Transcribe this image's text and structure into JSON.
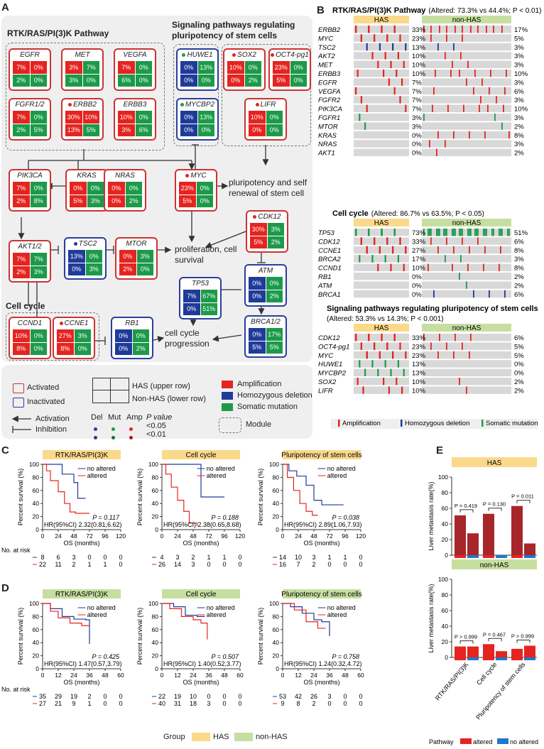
{
  "panel_labels": {
    "a": "A",
    "b": "B",
    "c": "C",
    "d": "D",
    "e": "E"
  },
  "a": {
    "rtk_title": "RTK/RAS/PI(3)K Pathway",
    "sp_title": "Signaling pathways regulating pluripotency of stem cells",
    "cc_title": "Cell cycle",
    "genes": [
      {
        "name": "EGFR",
        "v": [
          "7%",
          "0%",
          "2%",
          "0%"
        ]
      },
      {
        "name": "MET",
        "v": [
          "3%",
          "7%",
          "3%",
          "0%"
        ]
      },
      {
        "name": "VEGFA",
        "v": [
          "7%",
          "0%",
          "6%",
          "0%"
        ]
      },
      {
        "name": "FGFR1/2",
        "v": [
          "7%",
          "0%",
          "2%",
          "5%"
        ]
      },
      {
        "name": "ERBB2",
        "v": [
          "30%",
          "10%",
          "13%",
          "5%"
        ]
      },
      {
        "name": "ERBB3",
        "v": [
          "10%",
          "0%",
          "3%",
          "6%"
        ]
      },
      {
        "name": "HUWE1",
        "v": [
          "0%",
          "13%",
          "0%",
          "0%"
        ]
      },
      {
        "name": "SOX2",
        "v": [
          "10%",
          "0%",
          "0%",
          "2%"
        ]
      },
      {
        "name": "OCT4-pg1",
        "v": [
          "23%",
          "0%",
          "5%",
          "0%"
        ]
      },
      {
        "name": "MYCBP2",
        "v": [
          "0%",
          "13%",
          "0%",
          "0%"
        ]
      },
      {
        "name": "LIFR",
        "v": [
          "10%",
          "0%",
          "0%",
          "0%"
        ]
      },
      {
        "name": "PIK3CA",
        "v": [
          "7%",
          "0%",
          "2%",
          "8%"
        ]
      },
      {
        "name": "KRAS",
        "v": [
          "0%",
          "0%",
          "5%",
          "3%"
        ]
      },
      {
        "name": "NRAS",
        "v": [
          "0%",
          "0%",
          "0%",
          "2%"
        ]
      },
      {
        "name": "MYC",
        "v": [
          "23%",
          "0%",
          "5%",
          "0%"
        ]
      },
      {
        "name": "CDK12",
        "v": [
          "30%",
          "3%",
          "5%",
          "2%"
        ]
      },
      {
        "name": "AKT1/2",
        "v": [
          "7%",
          "7%",
          "2%",
          "3%"
        ]
      },
      {
        "name": "TSC2",
        "v": [
          "13%",
          "0%",
          "0%",
          "3%"
        ]
      },
      {
        "name": "MTOR",
        "v": [
          "0%",
          "3%",
          "2%",
          "0%"
        ]
      },
      {
        "name": "ATM",
        "v": [
          "0%",
          "0%",
          "0%",
          "2%"
        ]
      },
      {
        "name": "TP53",
        "v": [
          "7%",
          "67%",
          "0%",
          "51%"
        ]
      },
      {
        "name": "CCND1",
        "v": [
          "10%",
          "0%",
          "8%",
          "0%"
        ]
      },
      {
        "name": "CCNE1",
        "v": [
          "27%",
          "3%",
          "8%",
          "0%"
        ]
      },
      {
        "name": "RB1",
        "v": [
          "0%",
          "0%",
          "0%",
          "2%"
        ]
      },
      {
        "name": "BRCA1/2",
        "v": [
          "0%",
          "17%",
          "5%",
          "5%"
        ]
      }
    ],
    "outcomes": [
      "pluripotency and self renewal of stem cell",
      "proliferation, cell survival",
      "cell cycle progression"
    ],
    "legend": {
      "activated": "Activated",
      "inactivated": "Inactivated",
      "has_upper": "HAS (upper row)",
      "nonhas_lower": "Non-HAS (lower row)",
      "amp": "Amplification",
      "homdel": "Homozygous deletion",
      "mut": "Somatic mutation",
      "activation": "Activation",
      "inhibition": "Inhibition",
      "del": "Del",
      "mutl": "Mut",
      "ampl": "Amp",
      "pvalue": "P value",
      "p05": "<0.05",
      "p01": "<0.01",
      "module": "Module"
    }
  },
  "b": {
    "groups": [
      {
        "title": "RTK/RAS/PI(3)K Pathway",
        "stat": "(Altered: 73.3% vs 44.4%; P < 0.01)",
        "genes": [
          "ERBB2",
          "MYC",
          "TSC2",
          "AKT2",
          "MET",
          "ERBB3",
          "EGFR",
          "VEGFA",
          "FGFR2",
          "PIK3CA",
          "FGFR1",
          "MTOR",
          "KRAS",
          "NRAS",
          "AKT1"
        ],
        "has": [
          "33%",
          "23%",
          "13%",
          "10%",
          "10%",
          "10%",
          "7%",
          "7%",
          "7%",
          "7%",
          "3%",
          "3%",
          "0%",
          "0%",
          "0%"
        ],
        "non": [
          "17%",
          "5%",
          "3%",
          "3%",
          "3%",
          "10%",
          "3%",
          "6%",
          "3%",
          "10%",
          "3%",
          "2%",
          "8%",
          "3%",
          "2%"
        ]
      },
      {
        "title": "Cell cycle",
        "stat": "(Altered: 86.7% vs 63.5%; P < 0.05)",
        "genes": [
          "TP53",
          "CDK12",
          "CCNE1",
          "BRCA2",
          "CCND1",
          "RB1",
          "ATM",
          "BRCA1"
        ],
        "has": [
          "73%",
          "33%",
          "27%",
          "17%",
          "10%",
          "0%",
          "0%",
          "0%"
        ],
        "non": [
          "51%",
          "6%",
          "8%",
          "3%",
          "8%",
          "2%",
          "2%",
          "6%"
        ]
      },
      {
        "title": "Signaling pathways regulating pluripotency of stem cells",
        "stat": "(Altered: 53.3% vs 14.3%; P < 0.001)",
        "genes": [
          "CDK12",
          "OCT4-pg1",
          "MYC",
          "HUWE1",
          "MYCBP2",
          "SOX2",
          "LIFR"
        ],
        "has": [
          "33%",
          "23%",
          "23%",
          "13%",
          "13%",
          "10%",
          "10%"
        ],
        "non": [
          "6%",
          "5%",
          "5%",
          "0%",
          "0%",
          "2%",
          "2%"
        ]
      }
    ],
    "has_label": "HAS",
    "non_label": "non-HAS",
    "legend": [
      "Amplification",
      "Homozygous deletion",
      "Somatic mutation"
    ]
  },
  "km": {
    "ylabel": "Percent survival (%)",
    "xlabel": "OS (months)",
    "no_risk": "No. at risk",
    "no_altered": "no altered",
    "altered": "altered",
    "c": [
      {
        "title": "RTK/RAS/PI(3)K",
        "p": "P = 0.117",
        "hr": "HR(95%CI) 2.32(0.81,6.62)",
        "xt": [
          "0",
          "24",
          "48",
          "72",
          "96",
          "120"
        ],
        "r1": [
          "8",
          "6",
          "3",
          "0",
          "0",
          "0"
        ],
        "r2": [
          "22",
          "11",
          "2",
          "1",
          "1",
          "0"
        ]
      },
      {
        "title": "Cell cycle",
        "p": "P = 0.188",
        "hr": "HR(95%CI) 2.38(0.65,8.68)",
        "xt": [
          "0",
          "24",
          "48",
          "72",
          "96",
          "120"
        ],
        "r1": [
          "4",
          "3",
          "2",
          "1",
          "1",
          "0"
        ],
        "r2": [
          "26",
          "14",
          "3",
          "0",
          "0",
          "0"
        ]
      },
      {
        "title": "Pluripotency of stem cells",
        "p": "P = 0.038",
        "hr": "HR(95%CI) 2.89(1.06,7.93)",
        "xt": [
          "0",
          "24",
          "48",
          "72",
          "96",
          "120"
        ],
        "r1": [
          "14",
          "10",
          "3",
          "1",
          "1",
          "0"
        ],
        "r2": [
          "16",
          "7",
          "2",
          "0",
          "0",
          "0"
        ]
      }
    ],
    "d": [
      {
        "title": "RTK/RAS/PI(3)K",
        "p": "P = 0.425",
        "hr": "HR(95%CI) 1.47(0.57,3.79)",
        "xt": [
          "0",
          "12",
          "24",
          "36",
          "48",
          "60"
        ],
        "r1": [
          "35",
          "29",
          "19",
          "2",
          "0",
          "0"
        ],
        "r2": [
          "27",
          "21",
          "9",
          "1",
          "0",
          "0"
        ]
      },
      {
        "title": "Cell cycle",
        "p": "P = 0.507",
        "hr": "HR(95%CI) 1.40(0.52,3.77)",
        "xt": [
          "0",
          "12",
          "24",
          "36",
          "48",
          "60"
        ],
        "r1": [
          "22",
          "19",
          "10",
          "0",
          "0",
          "0"
        ],
        "r2": [
          "40",
          "31",
          "18",
          "3",
          "0",
          "0"
        ]
      },
      {
        "title": "Pluripotency of stem cells",
        "p": "P = 0.758",
        "hr": "HR(95%CI) 1.24(0.32,4.72)",
        "xt": [
          "0",
          "12",
          "24",
          "36",
          "48",
          "60"
        ],
        "r1": [
          "53",
          "42",
          "26",
          "3",
          "0",
          "0"
        ],
        "r2": [
          "9",
          "8",
          "2",
          "0",
          "0",
          "0"
        ]
      }
    ],
    "yt": [
      "0",
      "20",
      "40",
      "60",
      "80",
      "100"
    ],
    "group_label": "Group",
    "has": "HAS",
    "nonhas": "non-HAS"
  },
  "chart_data": [
    {
      "type": "bar",
      "title": "HAS",
      "ylabel": "Liver metastasis rate(%)",
      "ylim": [
        0,
        100
      ],
      "categories": [
        "RTK/RAS/PI(3)K",
        "Cell cycle",
        "Pluripotency of stem cells"
      ],
      "series": [
        {
          "name": "altered",
          "values": [
            51,
            53,
            63
          ]
        },
        {
          "name": "no altered",
          "values": [
            28,
            0,
            15
          ]
        }
      ],
      "annotations": [
        "P = 0.419",
        "P = 0.130",
        "P = 0.011"
      ]
    },
    {
      "type": "bar",
      "title": "non-HAS",
      "ylabel": "Liver metastasis rate(%)",
      "ylim": [
        0,
        100
      ],
      "categories": [
        "RTK/RAS/PI(3)K",
        "Cell cycle",
        "Pluripotency of stem cells"
      ],
      "series": [
        {
          "name": "altered",
          "values": [
            14,
            17,
            11
          ]
        },
        {
          "name": "no altered",
          "values": [
            14,
            8,
            15
          ]
        }
      ],
      "annotations": [
        "P > 0.999",
        "P = 0.467",
        "P > 0.999"
      ]
    }
  ],
  "e_legend": {
    "pathway": "Pathway",
    "altered": "altered",
    "no_altered": "no altered"
  },
  "e_ticks": [
    "0",
    "20",
    "40",
    "60",
    "80",
    "100"
  ],
  "colors": {
    "red": "#e52420",
    "blue": "#1f3b99",
    "green": "#1c9a4a",
    "dkred": "#a6262a",
    "ltblue": "#1f78c8",
    "has": "#fbd98b",
    "nonhas": "#c6dfa0"
  }
}
